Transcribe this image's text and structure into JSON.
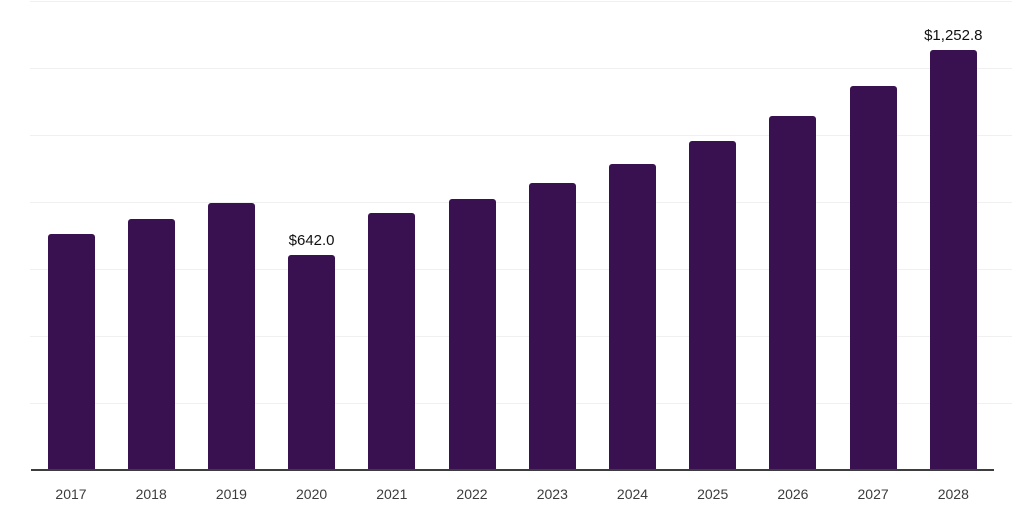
{
  "chart_data": {
    "type": "bar",
    "title": "",
    "xlabel": "",
    "ylabel": "",
    "categories": [
      "2017",
      "2018",
      "2019",
      "2020",
      "2021",
      "2022",
      "2023",
      "2024",
      "2025",
      "2026",
      "2027",
      "2028"
    ],
    "values": [
      705,
      749,
      798,
      642.0,
      768,
      808,
      858,
      914,
      981,
      1058,
      1148,
      1252.8
    ],
    "data_labels": {
      "2020": "$642.0",
      "2028": "$1,252.8"
    },
    "ylim": [
      0,
      1400
    ],
    "gridline_values": [
      200,
      400,
      600,
      800,
      1000,
      1200,
      1400
    ],
    "grid": "horizontal-only",
    "legend": "none",
    "y_axis_ticks": "hidden",
    "currency_prefix": "$",
    "colors": {
      "bar": "#3a1150",
      "gridline": "#f0f0f1",
      "axis_line": "#3d3d3d",
      "tick_label": "#3c3c3c",
      "data_label": "#111111",
      "background": "#ffffff"
    }
  }
}
